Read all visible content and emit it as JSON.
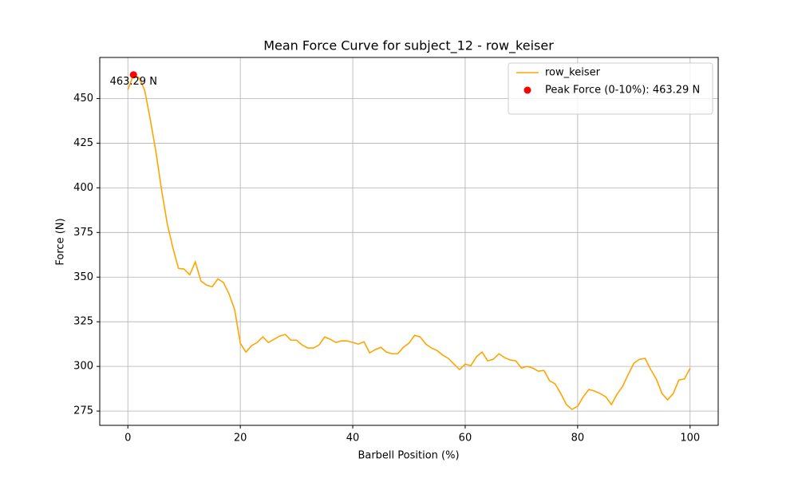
{
  "chart_data": {
    "type": "line",
    "title": "Mean Force Curve for subject_12 - row_keiser",
    "x_label": "Barbell Position (%)",
    "y_label": "Force (N)",
    "x": [
      0,
      1,
      2,
      3,
      4,
      5,
      6,
      7,
      8,
      9,
      10,
      11,
      12,
      13,
      14,
      15,
      16,
      17,
      18,
      19,
      20,
      21,
      22,
      23,
      24,
      25,
      26,
      27,
      28,
      29,
      30,
      31,
      32,
      33,
      34,
      35,
      36,
      37,
      38,
      39,
      40,
      41,
      42,
      43,
      44,
      45,
      46,
      47,
      48,
      49,
      50,
      51,
      52,
      53,
      54,
      55,
      56,
      57,
      58,
      59,
      60,
      61,
      62,
      63,
      64,
      65,
      66,
      67,
      68,
      69,
      70,
      71,
      72,
      73,
      74,
      75,
      76,
      77,
      78,
      79,
      80,
      81,
      82,
      83,
      84,
      85,
      86,
      87,
      88,
      89,
      90,
      91,
      92,
      93,
      94,
      95,
      96,
      97,
      98,
      99,
      100
    ],
    "series": [
      {
        "name": "row_keiser",
        "color": "orange",
        "values": [
          454.9,
          463.29,
          461.6,
          454.5,
          438,
          420,
          398.7,
          380,
          366.5,
          354.9,
          354.5,
          351.3,
          358.5,
          347.8,
          345.5,
          344.6,
          349,
          347,
          340.6,
          331.7,
          313,
          308,
          311.6,
          313.4,
          316.5,
          313.4,
          315.2,
          317,
          317.9,
          314.7,
          314.7,
          312,
          310.3,
          310.3,
          312,
          316.5,
          315.2,
          313.4,
          314.3,
          314.3,
          313.4,
          312.5,
          313.8,
          307.6,
          309.4,
          310.7,
          308,
          307.1,
          307.1,
          310.7,
          313,
          317.4,
          316.5,
          312.5,
          310.3,
          308.9,
          306.3,
          304.5,
          301.3,
          298.2,
          301.3,
          300.4,
          305.4,
          308,
          303.1,
          304,
          307.1,
          304.9,
          303.6,
          303.1,
          299.1,
          300,
          299.1,
          297.3,
          297.8,
          292,
          290.2,
          284.8,
          278.6,
          275.9,
          277.7,
          283,
          287.1,
          286.2,
          284.8,
          283,
          278.6,
          284.4,
          288.8,
          295.5,
          301.8,
          304,
          304.5,
          298.2,
          292.9,
          284.8,
          281.3,
          284.8,
          292.4,
          293,
          299
        ]
      },
      {
        "name": "Peak Force (0-10%): 463.29 N",
        "type": "scatter",
        "color": "red",
        "x": [
          1
        ],
        "values": [
          463.29
        ],
        "value_labels": [
          "463.29 N"
        ]
      }
    ],
    "xlim": [
      -5,
      105
    ],
    "ylim": [
      267,
      473
    ],
    "xticks": [
      0,
      20,
      40,
      60,
      80,
      100
    ],
    "yticks": [
      275,
      300,
      325,
      350,
      375,
      400,
      425,
      450
    ],
    "grid": true,
    "legend": "upper right"
  }
}
